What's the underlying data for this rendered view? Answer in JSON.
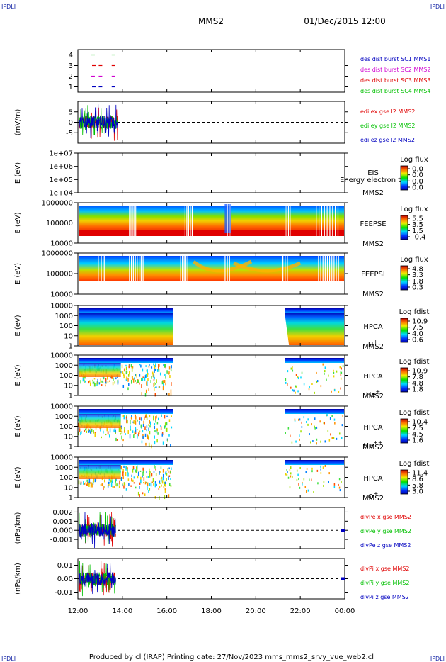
{
  "corners": {
    "tl": "IPDLI",
    "tr": "IPDLI",
    "bl": "IPDLI",
    "br": "IPDLI"
  },
  "header": {
    "spacecraft": "MMS2",
    "datetime": "01/Dec/2015 12:00"
  },
  "footer": "Produced by cl (IRAP)   Printing date: 27/Nov/2023   mms_mms2_srvy_vue_web2.cl",
  "colors": {
    "red": "#e00000",
    "green": "#00c000",
    "blue": "#0000c0",
    "magenta": "#d000d0"
  },
  "chart_data": [
    {
      "type": "scatter",
      "ylim": [
        0.5,
        4.5
      ],
      "yticks": [
        "1",
        "2",
        "3",
        "4"
      ],
      "legend": [
        "des dist burst SC1 MMS1",
        "des dist burst SC2 MMS2",
        "des dist burst SC3 MMS3",
        "des dist burst SC4 MMS4"
      ],
      "series": [
        {
          "y": 4,
          "x": [
            "12:40",
            "13:35"
          ]
        },
        {
          "y": 3,
          "x": [
            "12:42",
            "13:00",
            "13:35"
          ]
        },
        {
          "y": 2,
          "x": [
            "12:40",
            "13:00",
            "13:35"
          ]
        },
        {
          "y": 1,
          "x": [
            "12:42",
            "13:00",
            "13:35"
          ]
        }
      ]
    },
    {
      "type": "line",
      "ylabel": "(mV/m)",
      "ylim": [
        -10,
        10
      ],
      "yticks": [
        "5",
        "0",
        "-5"
      ],
      "legend": [
        "edi ex gse l2 MMS2",
        "edi ey gse l2 MMS2",
        "edi ez gse l2 MMS2"
      ]
    },
    {
      "type": "heatmap",
      "ylabel": "E (eV)",
      "yticks": [
        "1e+07",
        "1e+06",
        "1e+05",
        "1e+04"
      ],
      "instrument": "EIS",
      "sc": "MMS2",
      "overlay": "Energy electron to",
      "colorbar": {
        "title": "Log flux",
        "ticks": [
          "0.0",
          "0.0",
          "0.0",
          "0.0"
        ]
      }
    },
    {
      "type": "heatmap",
      "ylabel": "E (eV)",
      "yticks": [
        "1000000",
        "100000",
        "10000"
      ],
      "instrument": "FEEPSE",
      "sc": "MMS2",
      "colorbar": {
        "title": "Log flux",
        "ticks": [
          "5.5",
          "3.5",
          "1.5",
          "-0.4"
        ]
      }
    },
    {
      "type": "heatmap",
      "ylabel": "E (eV)",
      "yticks": [
        "1000000",
        "100000",
        "10000"
      ],
      "instrument": "FEEPSI",
      "sc": "MMS2",
      "colorbar": {
        "title": "Log flux",
        "ticks": [
          "4.8",
          "3.3",
          "1.8",
          "0.3"
        ]
      }
    },
    {
      "type": "heatmap",
      "ylabel": "E (eV)",
      "yticks": [
        "10000",
        "1000",
        "100",
        "10",
        "1"
      ],
      "instrument": "HPCA",
      "sc": "MMS2",
      "species": "H",
      "charge": "+",
      "colorbar": {
        "title": "Log fdist",
        "ticks": [
          "10.9",
          "7.5",
          "4.0",
          "0.6"
        ]
      }
    },
    {
      "type": "heatmap",
      "ylabel": "E (eV)",
      "yticks": [
        "10000",
        "1000",
        "100",
        "10",
        "1"
      ],
      "instrument": "HPCA",
      "sc": "MMS2",
      "species": "He",
      "charge": "+",
      "colorbar": {
        "title": "Log fdist",
        "ticks": [
          "10.9",
          "7.8",
          "4.8",
          "1.8"
        ]
      }
    },
    {
      "type": "heatmap",
      "ylabel": "E (eV)",
      "yticks": [
        "10000",
        "1000",
        "100",
        "10",
        "1"
      ],
      "instrument": "HPCA",
      "sc": "MMS2",
      "species": "He",
      "charge": "++",
      "colorbar": {
        "title": "Log fdist",
        "ticks": [
          "10.4",
          "7.5",
          "4.5",
          "1.6"
        ]
      }
    },
    {
      "type": "heatmap",
      "ylabel": "E (eV)",
      "yticks": [
        "10000",
        "1000",
        "100",
        "10",
        "1"
      ],
      "instrument": "HPCA",
      "sc": "MMS2",
      "species": "O",
      "charge": "+",
      "colorbar": {
        "title": "Log fdist",
        "ticks": [
          "11.4",
          "8.6",
          "5.8",
          "3.0"
        ]
      }
    },
    {
      "type": "line",
      "ylabel": "(nPa/km)",
      "ylim": [
        -0.002,
        0.0025
      ],
      "yticks": [
        "0.002",
        "0.001",
        "0.000",
        "-0.001"
      ],
      "legend": [
        "divPe x gse MMS2",
        "divPe y gse MMS2",
        "divPe z gse MMS2"
      ]
    },
    {
      "type": "line",
      "ylabel": "(nPa/km)",
      "ylim": [
        -0.015,
        0.015
      ],
      "yticks": [
        "0.01",
        "0.00",
        "-0.01"
      ],
      "legend": [
        "divPi x gse MMS2",
        "divPi y gse MMS2",
        "divPi z gse MMS2"
      ]
    }
  ],
  "xaxis": {
    "ticks": [
      "12:00",
      "14:00",
      "16:00",
      "18:00",
      "20:00",
      "22:00",
      "00:00"
    ]
  }
}
